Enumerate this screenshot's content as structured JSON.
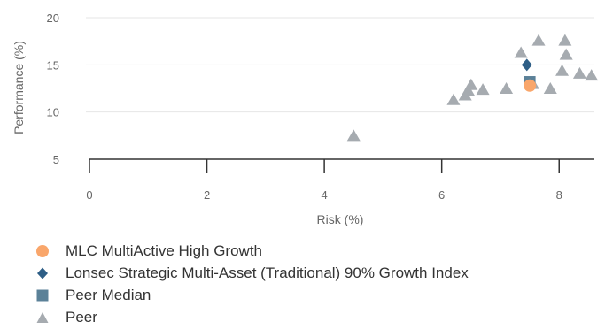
{
  "chart_data": {
    "type": "scatter",
    "xlabel": "Risk (%)",
    "ylabel": "Performance (%)",
    "xlim": [
      0,
      8.6
    ],
    "ylim": [
      5,
      20
    ],
    "x_ticks": [
      0,
      2,
      4,
      6,
      8
    ],
    "y_ticks": [
      5,
      10,
      15,
      20
    ],
    "grid": "horizontal",
    "legend_position": "bottom-left",
    "series": [
      {
        "name": "MLC MultiActive High Growth",
        "marker": "circle",
        "color": "#f9a66b",
        "points": [
          {
            "x": 7.5,
            "y": 12.8
          }
        ]
      },
      {
        "name": "Lonsec Strategic Multi-Asset (Traditional) 90% Growth Index",
        "marker": "diamond",
        "color": "#2e5e86",
        "points": [
          {
            "x": 7.45,
            "y": 15.0
          }
        ]
      },
      {
        "name": "Peer Median",
        "marker": "square",
        "color": "#5b8198",
        "points": [
          {
            "x": 7.5,
            "y": 13.2
          }
        ]
      },
      {
        "name": "Peer",
        "marker": "triangle",
        "color": "#a6abb0",
        "points": [
          {
            "x": 4.5,
            "y": 7.5
          },
          {
            "x": 6.2,
            "y": 11.3
          },
          {
            "x": 6.4,
            "y": 11.8
          },
          {
            "x": 6.45,
            "y": 12.3
          },
          {
            "x": 6.5,
            "y": 12.9
          },
          {
            "x": 6.7,
            "y": 12.4
          },
          {
            "x": 7.1,
            "y": 12.5
          },
          {
            "x": 7.35,
            "y": 16.3
          },
          {
            "x": 7.55,
            "y": 13.0
          },
          {
            "x": 7.65,
            "y": 17.6
          },
          {
            "x": 7.85,
            "y": 12.5
          },
          {
            "x": 8.05,
            "y": 14.4
          },
          {
            "x": 8.1,
            "y": 17.6
          },
          {
            "x": 8.12,
            "y": 16.1
          },
          {
            "x": 8.35,
            "y": 14.1
          },
          {
            "x": 8.55,
            "y": 13.9
          }
        ]
      }
    ]
  }
}
